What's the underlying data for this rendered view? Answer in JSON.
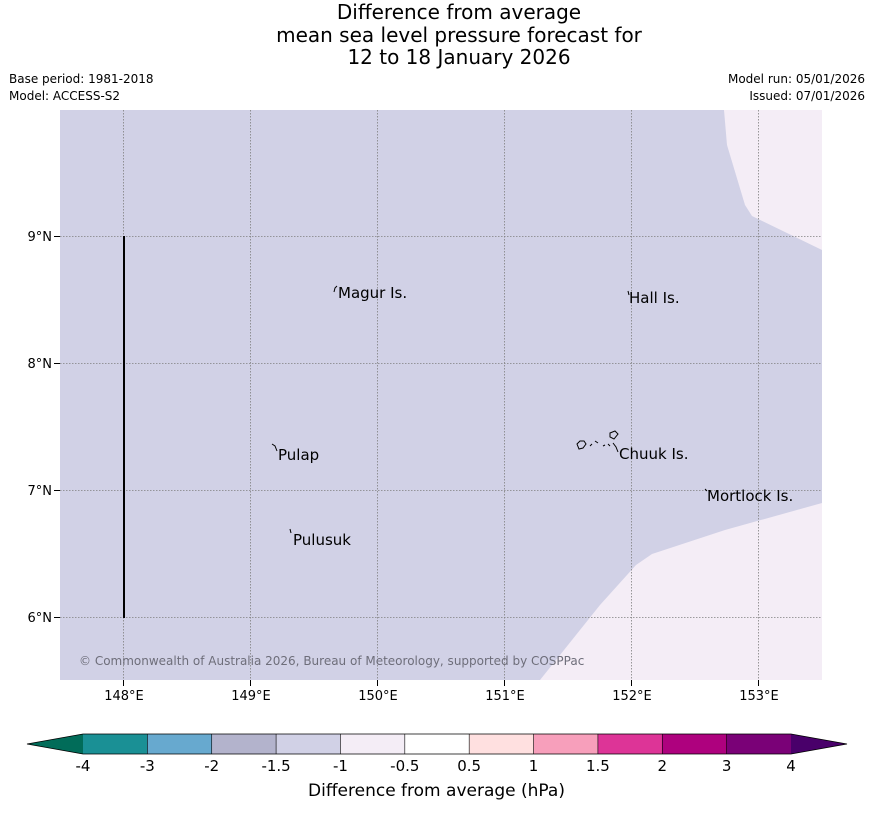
{
  "title": {
    "line1": "Difference from average",
    "line2": "mean sea level pressure forecast for",
    "line3": "12 to 18 January 2026"
  },
  "meta": {
    "base_period": "Base period: 1981-2018",
    "model": "Model: ACCESS-S2",
    "model_run": "Model run: 05/01/2026",
    "issued": "Issued: 07/01/2026"
  },
  "map": {
    "lon_ticks": [
      "148°E",
      "149°E",
      "150°E",
      "151°E",
      "152°E",
      "153°E"
    ],
    "lat_ticks": [
      "9°N",
      "8°N",
      "7°N",
      "6°N"
    ],
    "places": [
      "Magur Is.",
      "Hall Is.",
      "Pulap",
      "Chuuk Is.",
      "Mortlock Is.",
      "Pulusuk"
    ],
    "copyright": "© Commonwealth of Australia 2026, Bureau of Meteorology, supported by COSPPac",
    "colors": {
      "band_minus1_5_to_minus1": "#d1d1e6",
      "band_minus1_to_minus0_5": "#f4edf6",
      "gridline": "#808080",
      "border_line": "#000000"
    }
  },
  "colorbar": {
    "title": "Difference from average (hPa)",
    "tick_labels": [
      "-4",
      "-3",
      "-2",
      "-1.5",
      "-1",
      "-0.5",
      "0.5",
      "1",
      "1.5",
      "2",
      "3",
      "4"
    ],
    "segment_colors": [
      "#1a9095",
      "#67a9cf",
      "#b3b3cc",
      "#d1d1e6",
      "#f4edf6",
      "#ffffff",
      "#ffe0e0",
      "#f79fbb",
      "#dd3497",
      "#ae017e",
      "#7a0177"
    ],
    "under_color": "#016c59",
    "over_color": "#49006a"
  }
}
